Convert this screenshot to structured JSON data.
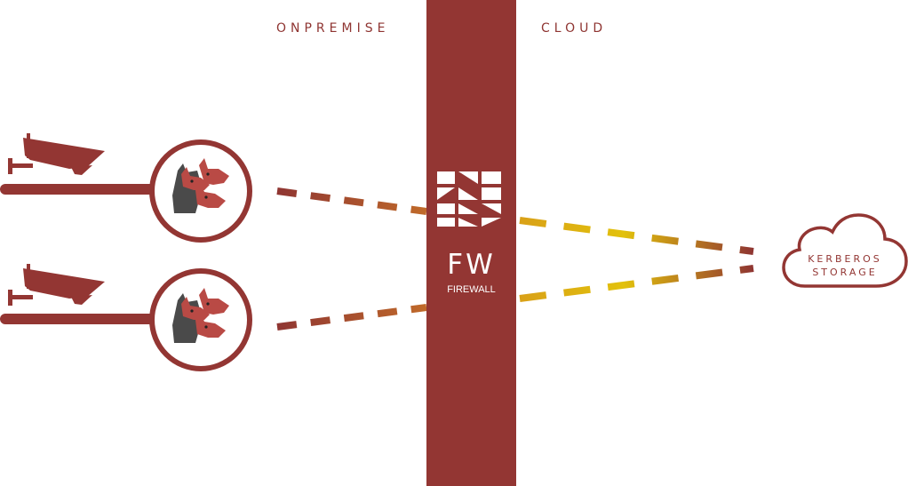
{
  "zones": {
    "onpremise": "ONPREMISE",
    "cloud": "CLOUD"
  },
  "firewall": {
    "title": "FW",
    "subtitle": "FIREWALL"
  },
  "storage": {
    "line1": "KERBEROS",
    "line2": "STORAGE"
  },
  "colors": {
    "brand": "#933633",
    "dash_start": "#8f3532",
    "dash_mid": "#c8742a",
    "dash_end": "#e2c10c",
    "head_dark": "#4a4a4a"
  },
  "icons": [
    "security-camera-icon",
    "kerberos-agent-icon",
    "firewall-logo-icon",
    "cloud-icon"
  ]
}
